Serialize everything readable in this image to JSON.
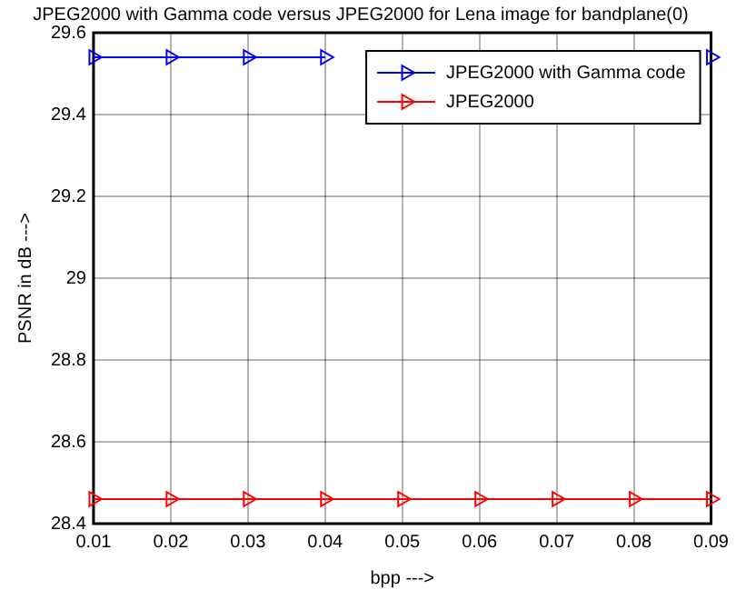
{
  "chart_data": {
    "type": "line",
    "title": "JPEG2000 with Gamma code versus JPEG2000 for Lena image for bandplane(0)",
    "xlabel": "bpp --->",
    "ylabel": "PSNR in dB --->",
    "x": [
      0.01,
      0.02,
      0.03,
      0.04,
      0.05,
      0.06,
      0.07,
      0.08,
      0.09
    ],
    "series": [
      {
        "name": "JPEG2000 with Gamma code",
        "color": "#0000ff",
        "values": [
          29.54,
          29.54,
          29.54,
          29.54,
          null,
          null,
          null,
          null,
          29.54
        ]
      },
      {
        "name": "JPEG2000",
        "color": "#ff0000",
        "values": [
          28.46,
          28.46,
          28.46,
          28.46,
          28.46,
          28.46,
          28.46,
          28.46,
          28.46
        ]
      }
    ],
    "xlim": [
      0.01,
      0.09
    ],
    "xticks": [
      0.01,
      0.02,
      0.03,
      0.04,
      0.05,
      0.06,
      0.07,
      0.08,
      0.09
    ],
    "ylim": [
      28.4,
      29.6
    ],
    "yticks": [
      28.4,
      28.6,
      28.8,
      29,
      29.2,
      29.4,
      29.6
    ],
    "grid": true,
    "legend": "top right",
    "marker": "triangle",
    "line_style": "solid"
  }
}
